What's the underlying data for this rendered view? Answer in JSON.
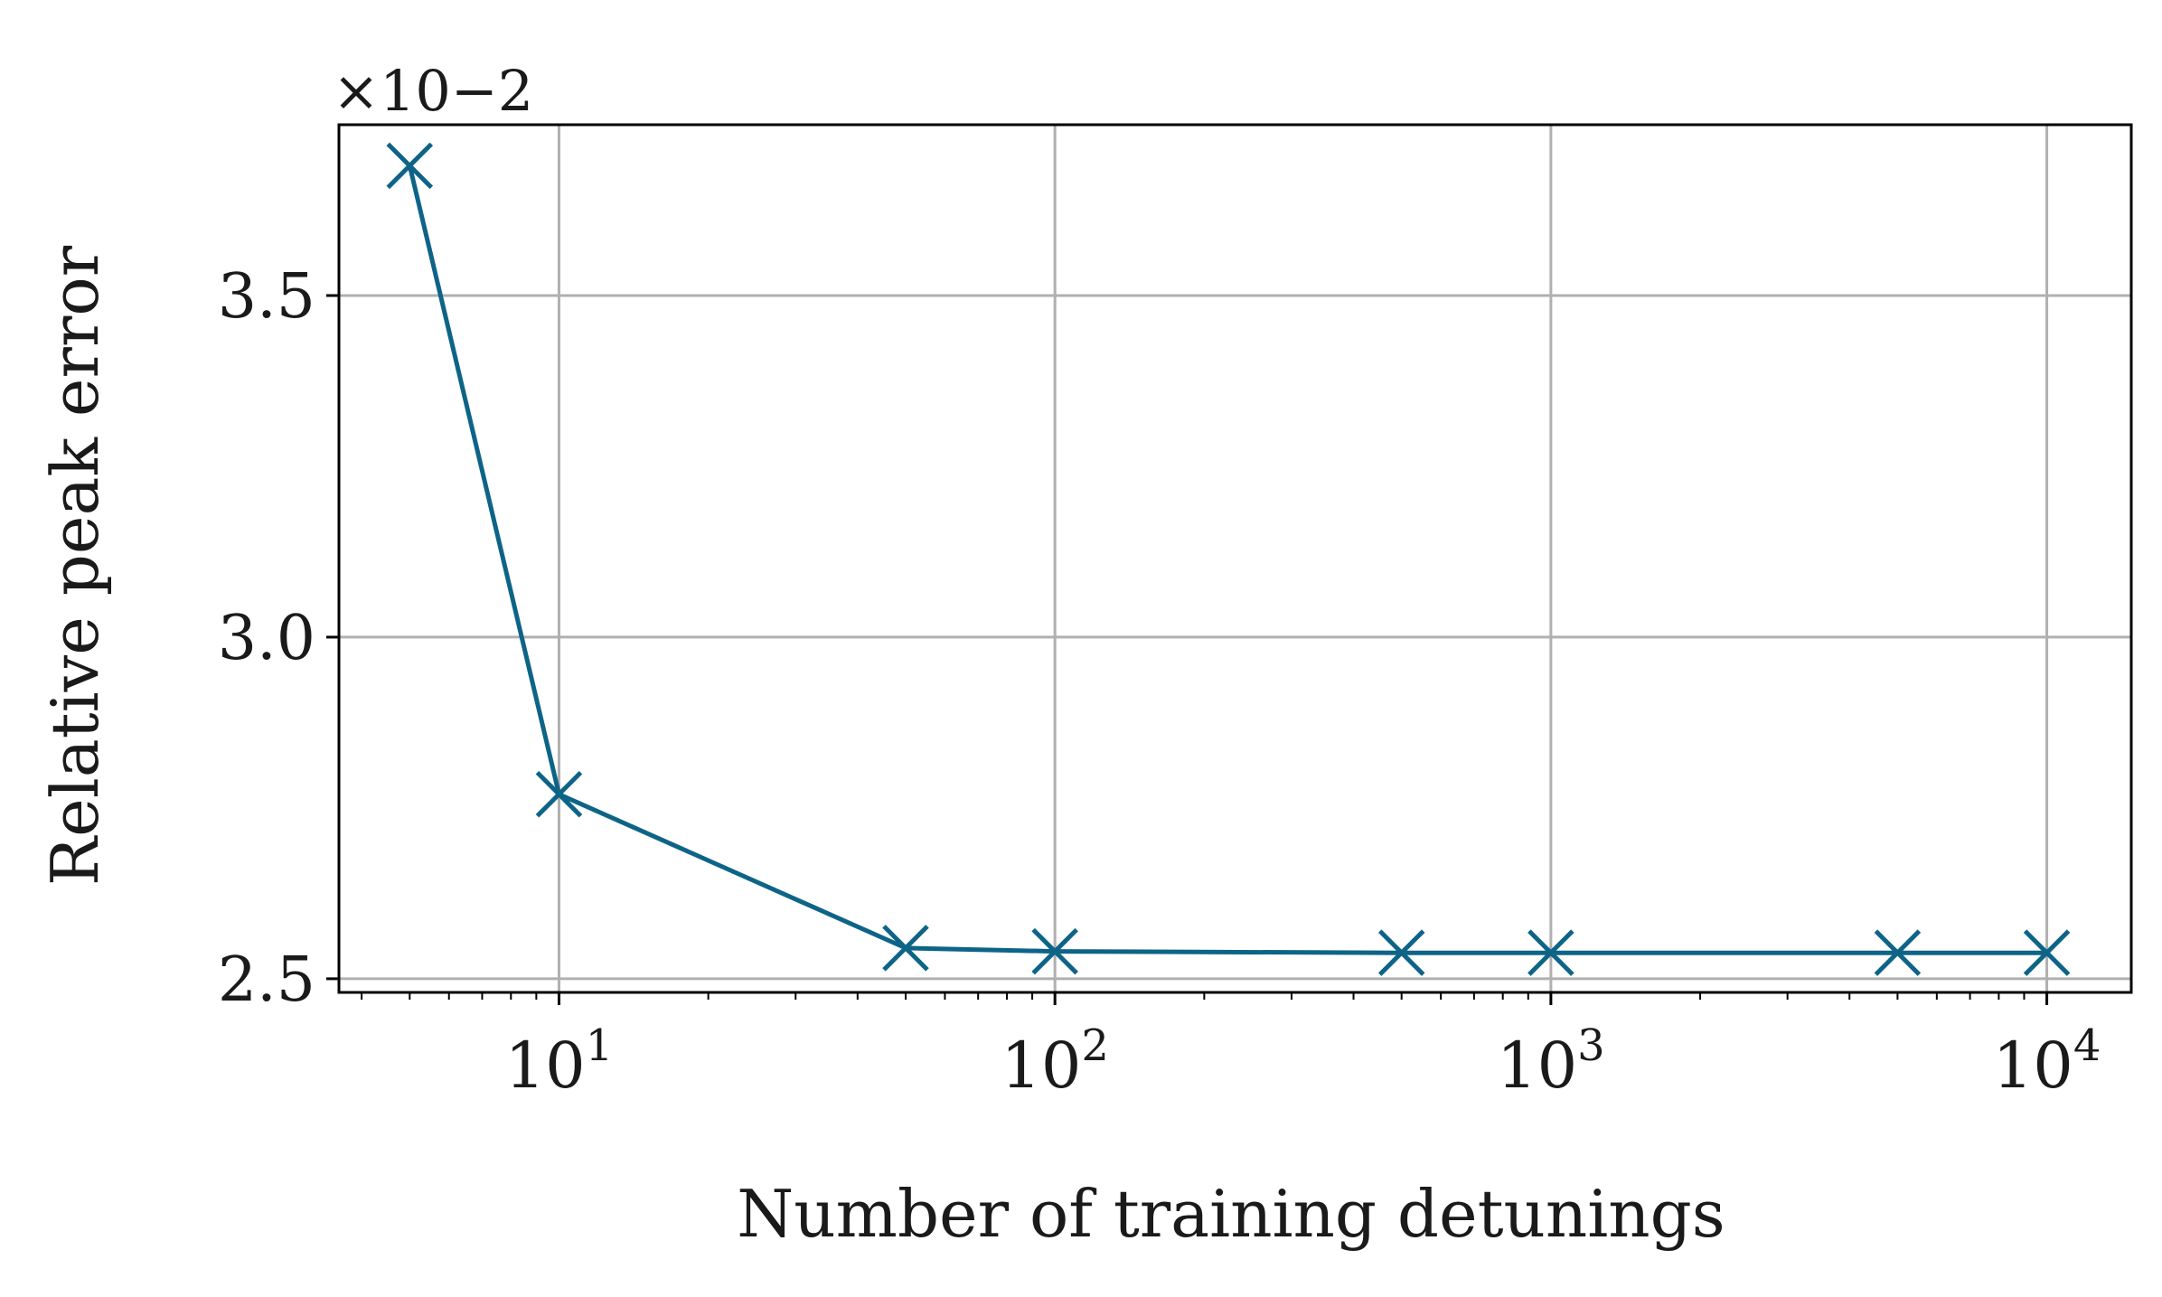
{
  "chart_data": {
    "type": "line",
    "title": "",
    "xlabel": "Number of training detunings",
    "ylabel": "Relative peak error",
    "xscale": "log",
    "yscale": "linear",
    "y_offset_label": "×10−2",
    "y_multiplier": 0.01,
    "xlim": [
      3.6,
      14800
    ],
    "ylim": [
      2.48,
      3.75
    ],
    "x_ticks": [
      {
        "value": 10,
        "base": "10",
        "exp": "1"
      },
      {
        "value": 100,
        "base": "10",
        "exp": "2"
      },
      {
        "value": 1000,
        "base": "10",
        "exp": "3"
      },
      {
        "value": 10000,
        "base": "10",
        "exp": "4"
      }
    ],
    "y_ticks": [
      {
        "value": 2.5,
        "label": "2.5"
      },
      {
        "value": 3.0,
        "label": "3.0"
      },
      {
        "value": 3.5,
        "label": "3.5"
      }
    ],
    "grid": true,
    "legend": "none",
    "series": [
      {
        "color": "#0d6487",
        "marker": "x",
        "x": [
          5,
          10,
          50,
          100,
          500,
          1000,
          5000,
          10000
        ],
        "y": [
          3.69,
          2.77,
          2.545,
          2.54,
          2.538,
          2.538,
          2.538,
          2.538
        ]
      }
    ]
  }
}
